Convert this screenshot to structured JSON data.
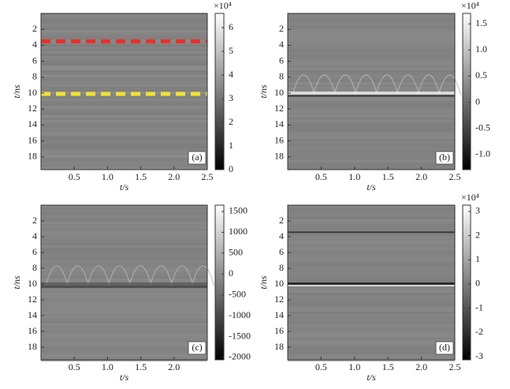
{
  "chart_data": [
    {
      "type": "heatmap",
      "panel_label": "(a)",
      "xlabel": "t/s",
      "ylabel": "t/ns",
      "xlim": [
        0,
        2.5
      ],
      "ylim": [
        0,
        19.6
      ],
      "y_reversed": true,
      "xticks": [
        0.5,
        {
          "value": 1,
          "label": "1.0"
        },
        1.5,
        {
          "value": 2,
          "label": "2.0"
        },
        2.5
      ],
      "yticks": [
        2,
        4,
        6,
        8,
        10,
        12,
        14,
        16,
        18
      ],
      "colormap": [
        "#000000",
        "#ffffff"
      ],
      "clim": [
        0,
        6.6
      ],
      "cticks": [
        0,
        1,
        2,
        3,
        4,
        5,
        6
      ],
      "cbar_scale": "×10⁴",
      "hlines": [
        {
          "y": 3.5,
          "color": "#e8302a"
        },
        {
          "y": 10.1,
          "color": "#f2e233"
        }
      ]
    },
    {
      "type": "heatmap",
      "panel_label": "(b)",
      "xlabel": "t/s",
      "ylabel": "t/ns",
      "xlim": [
        0,
        2.5
      ],
      "ylim": [
        0,
        19.6
      ],
      "y_reversed": true,
      "xticks": [
        0.5,
        {
          "value": 1,
          "label": "1.0"
        },
        1.5,
        {
          "value": 2,
          "label": "2.0"
        },
        2.5
      ],
      "yticks": [
        2,
        4,
        6,
        8,
        10,
        12,
        14,
        16,
        18
      ],
      "colormap": [
        "#000000",
        "#ffffff"
      ],
      "clim": [
        -1.29,
        1.7
      ],
      "cticks": [
        1.5,
        {
          "value": 1,
          "label": "1.0"
        },
        0.5,
        0,
        -0.5,
        {
          "value": -1,
          "label": "-1.0"
        }
      ],
      "cbar_scale": "×10⁴"
    },
    {
      "type": "heatmap",
      "panel_label": "(c)",
      "xlabel": "t/s",
      "ylabel": "t/ns",
      "xlim": [
        0,
        2.5
      ],
      "ylim": [
        0,
        19.6
      ],
      "y_reversed": true,
      "xticks": [
        0.5,
        {
          "value": 1,
          "label": "1.0"
        },
        1.5,
        {
          "value": 2,
          "label": "2.0"
        }
      ],
      "yticks": [
        2,
        4,
        6,
        8,
        10,
        12,
        14,
        16,
        18
      ],
      "colormap": [
        "#000000",
        "#ffffff"
      ],
      "clim": [
        -2057,
        1651
      ],
      "cticks": [
        1500,
        1000,
        500,
        0,
        -500,
        -1000,
        -1500,
        -2000
      ]
    },
    {
      "type": "heatmap",
      "panel_label": "(d)",
      "xlabel": "t/s",
      "ylabel": "t/ns",
      "xlim": [
        0,
        2.5
      ],
      "ylim": [
        0,
        19.6
      ],
      "y_reversed": true,
      "xticks": [
        0.5,
        {
          "value": 1,
          "label": "1.0"
        },
        1.5,
        {
          "value": 2,
          "label": "2.0"
        },
        2.5
      ],
      "yticks": [
        2,
        4,
        6,
        8,
        10,
        12,
        14,
        16,
        18
      ],
      "colormap": [
        "#000000",
        "#ffffff"
      ],
      "clim": [
        -3.13,
        3.26
      ],
      "cticks": [
        3,
        2,
        1,
        0,
        -1,
        -2,
        -3
      ],
      "cbar_scale": "×10⁴"
    }
  ]
}
